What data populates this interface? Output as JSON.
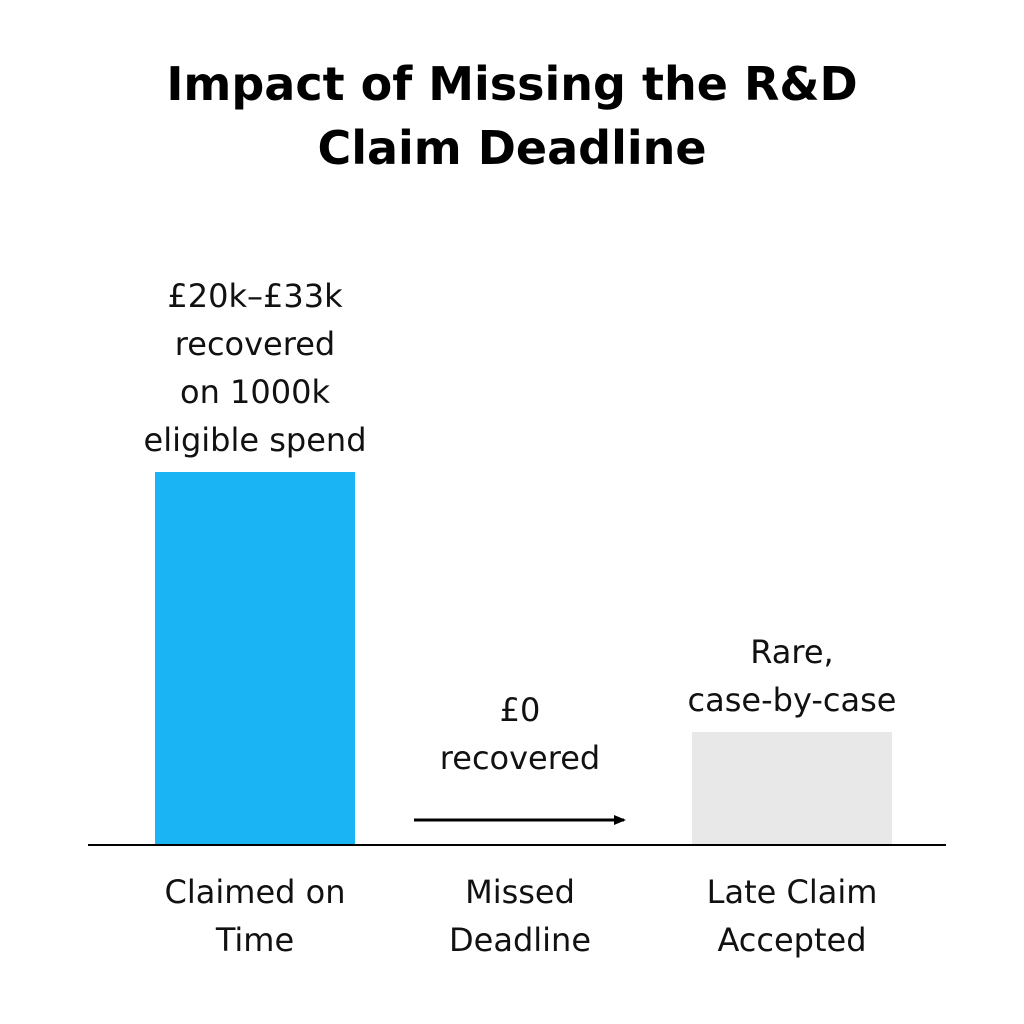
{
  "chart_data": {
    "type": "bar",
    "title": "Impact of Missing the R&D Claim Deadline",
    "xlabel": "",
    "ylabel": "",
    "grid": false,
    "legend": "none",
    "categories": [
      "Claimed on Time",
      "Missed Deadline",
      "Late Claim Accepted"
    ],
    "values": [
      33,
      0,
      10
    ],
    "value_note": "relative magnitude only; no numeric axis is printed",
    "data_labels": [
      "£20k–£33k recovered on 1000k eligible spend",
      "£0 recovered",
      "Rare, case-by-case"
    ],
    "colors": [
      "#1ab4f5",
      "#000000",
      "#e8e8e8"
    ],
    "baseline_color": "#000000",
    "missed_marker": "arrow"
  }
}
